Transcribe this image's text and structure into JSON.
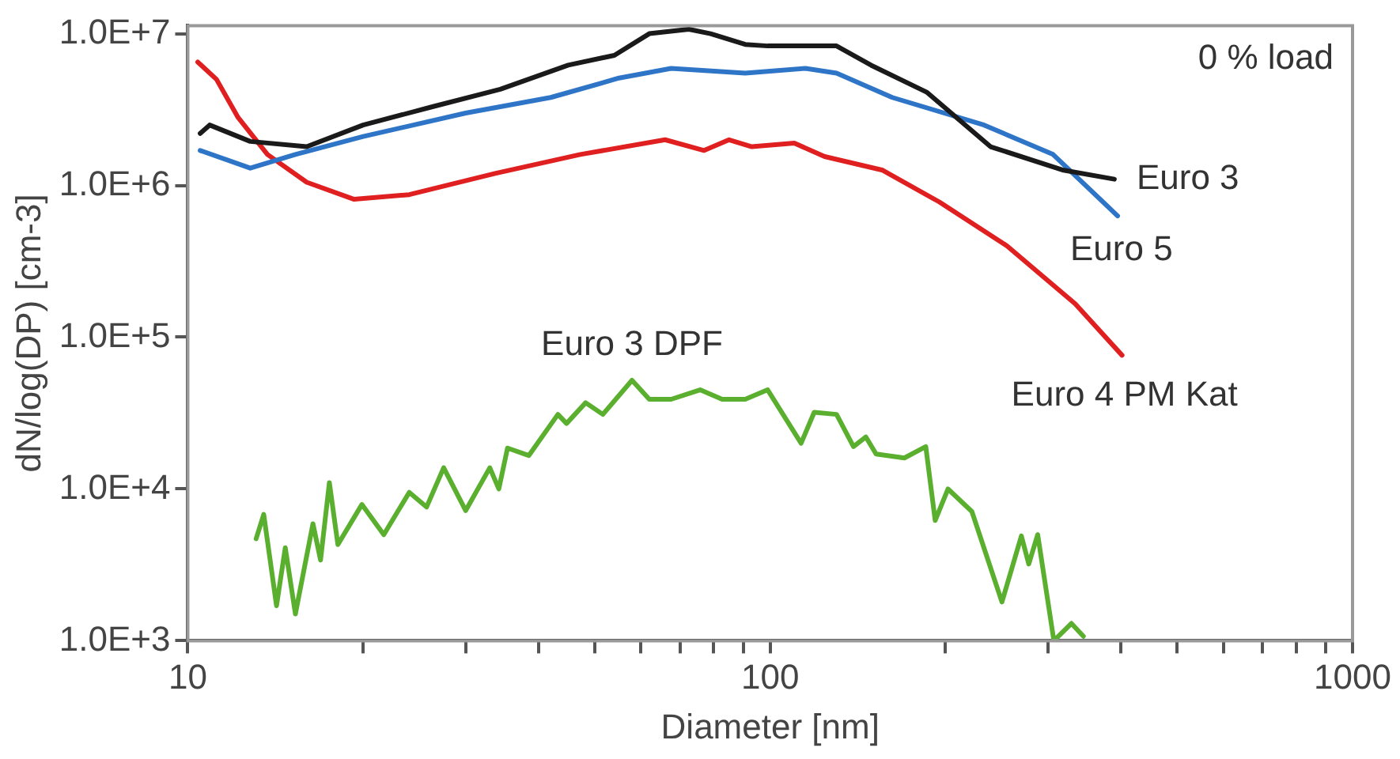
{
  "chart_data": {
    "type": "line",
    "xlabel": "Diameter [nm]",
    "ylabel": "dN/log(DP) [cm-3]",
    "log": "xy",
    "grid": false,
    "legend": false,
    "marker": "none",
    "line_style": "solid",
    "annotations": [
      "0 % load"
    ],
    "xlim": [
      10,
      1000
    ],
    "xticks": [
      10,
      {
        "value": 20,
        "label": null
      },
      {
        "value": 30,
        "label": null
      },
      {
        "value": 40,
        "label": null
      },
      {
        "value": 50,
        "label": null
      },
      {
        "value": 60,
        "label": null
      },
      {
        "value": 70,
        "label": null
      },
      {
        "value": 80,
        "label": null
      },
      {
        "value": 90,
        "label": null
      },
      100,
      {
        "value": 200,
        "label": null
      },
      {
        "value": 300,
        "label": null
      },
      {
        "value": 400,
        "label": null
      },
      {
        "value": 500,
        "label": null
      },
      {
        "value": 600,
        "label": null
      },
      {
        "value": 700,
        "label": null
      },
      {
        "value": 800,
        "label": null
      },
      {
        "value": 900,
        "label": null
      },
      1000
    ],
    "ylim": [
      1000,
      11300000
    ],
    "yticks": [
      {
        "value": 1000,
        "label": "1.0E+3"
      },
      {
        "value": 10000,
        "label": "1.0E+4"
      },
      {
        "value": 100000,
        "label": "1.0E+5"
      },
      {
        "value": 1000000,
        "label": "1.0E+6"
      },
      {
        "value": 10000000,
        "label": "1.0E+7"
      }
    ],
    "series": [
      {
        "name": "Euro 3",
        "color": "#1a1a1a",
        "x": [
          10.5,
          10.9,
          12.8,
          16.0,
          20.0,
          26.3,
          34.4,
          45.0,
          54,
          62,
          72.5,
          79,
          90.6,
          99,
          130,
          149,
          186,
          239,
          319,
          390
        ],
        "values": [
          2200000,
          2500000,
          1950000,
          1800000,
          2500000,
          3300000,
          4300000,
          6200000,
          7200000,
          10000000,
          10700000,
          10000000,
          8500000,
          8300000,
          8300000,
          6200000,
          4100000,
          1800000,
          1260000,
          1100000
        ]
      },
      {
        "name": "Euro 5",
        "color": "#2e75c8",
        "x": [
          10.5,
          12.8,
          15.3,
          20,
          30,
          42,
          55,
          67.6,
          90.6,
          115,
          130,
          162,
          233,
          306,
          395
        ],
        "values": [
          1700000,
          1300000,
          1600000,
          2100000,
          3000000,
          3800000,
          5100000,
          5900000,
          5500000,
          5900000,
          5500000,
          3800000,
          2500000,
          1600000,
          630000
        ]
      },
      {
        "name": "Euro 4 PM Kat",
        "color": "#e02020",
        "x": [
          10.4,
          11.2,
          12.2,
          13.7,
          16,
          19.3,
          24.0,
          33.7,
          47.2,
          66,
          77,
          85,
          93,
          110,
          124,
          156,
          195,
          255,
          334,
          402
        ],
        "values": [
          6500000,
          5000000,
          2800000,
          1600000,
          1050000,
          810000,
          870000,
          1200000,
          1600000,
          2000000,
          1700000,
          2000000,
          1800000,
          1900000,
          1550000,
          1260000,
          780000,
          400000,
          166000,
          76000
        ]
      },
      {
        "name": "Euro 3 DPF",
        "color": "#5ab02e",
        "x": [
          13.1,
          13.5,
          14.2,
          14.7,
          15.3,
          16.4,
          16.9,
          17.5,
          18.1,
          19.9,
          21.7,
          24.0,
          25.7,
          27.5,
          30.0,
          33.0,
          34.2,
          35.4,
          38.5,
          43.2,
          44.7,
          48.2,
          51.6,
          57.9,
          62,
          67.6,
          75.8,
          82.7,
          90.6,
          99,
          113,
          119,
          130,
          139,
          146,
          152,
          170,
          185,
          192,
          202,
          222,
          250,
          270,
          278,
          288,
          307,
          329,
          345
        ],
        "values": [
          4700,
          6800,
          1700,
          4100,
          1500,
          5900,
          3400,
          11000,
          4300,
          7900,
          5000,
          9500,
          7600,
          13800,
          7200,
          13800,
          10000,
          18600,
          16600,
          31000,
          27000,
          37000,
          31000,
          52000,
          39000,
          39000,
          45000,
          39000,
          39000,
          45000,
          20000,
          32000,
          31000,
          19000,
          22000,
          17000,
          16000,
          19000,
          6200,
          10000,
          7100,
          1800,
          4900,
          3200,
          5000,
          1000,
          1300,
          1070
        ]
      }
    ]
  }
}
